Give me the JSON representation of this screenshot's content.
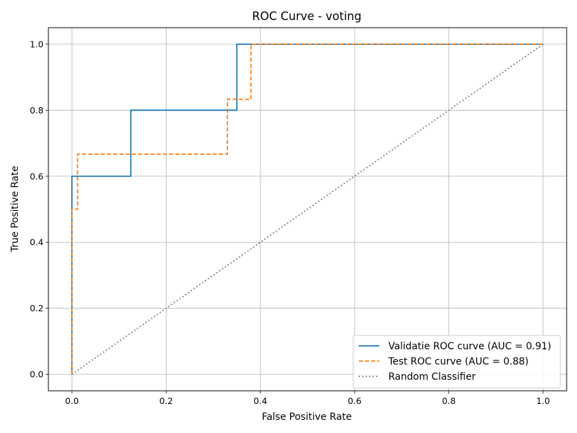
{
  "chart_data": {
    "type": "line",
    "title": "ROC Curve - voting",
    "xlabel": "False Positive Rate",
    "ylabel": "True Positive Rate",
    "xlim": [
      -0.05,
      1.05
    ],
    "ylim": [
      -0.05,
      1.05
    ],
    "xticks": [
      0.0,
      0.2,
      0.4,
      0.6,
      0.8,
      1.0
    ],
    "yticks": [
      0.0,
      0.2,
      0.4,
      0.6,
      0.8,
      1.0
    ],
    "xtick_labels": [
      "0.0",
      "0.2",
      "0.4",
      "0.6",
      "0.8",
      "1.0"
    ],
    "ytick_labels": [
      "0.0",
      "0.2",
      "0.4",
      "0.6",
      "0.8",
      "1.0"
    ],
    "grid": true,
    "legend_position": "lower-right",
    "series": [
      {
        "name": "Validatie ROC curve (AUC = 0.91)",
        "color": "#1f77b4",
        "style": "solid",
        "x": [
          0.0,
          0.0,
          0.0,
          0.125,
          0.125,
          0.35,
          0.35,
          1.0
        ],
        "y": [
          0.0,
          0.5,
          0.6,
          0.6,
          0.8,
          0.8,
          1.0,
          1.0
        ]
      },
      {
        "name": "Test ROC curve (AUC = 0.88)",
        "color": "#ff7f0e",
        "style": "dashed",
        "x": [
          0.0,
          0.0,
          0.0,
          0.012,
          0.012,
          0.33,
          0.33,
          0.38,
          0.38,
          1.0
        ],
        "y": [
          0.0,
          0.333,
          0.5,
          0.5,
          0.667,
          0.667,
          0.833,
          0.833,
          1.0,
          1.0
        ]
      },
      {
        "name": "Random Classifier",
        "color": "#7f7f7f",
        "style": "dotted",
        "x": [
          0.0,
          1.0
        ],
        "y": [
          0.0,
          1.0
        ]
      }
    ]
  }
}
